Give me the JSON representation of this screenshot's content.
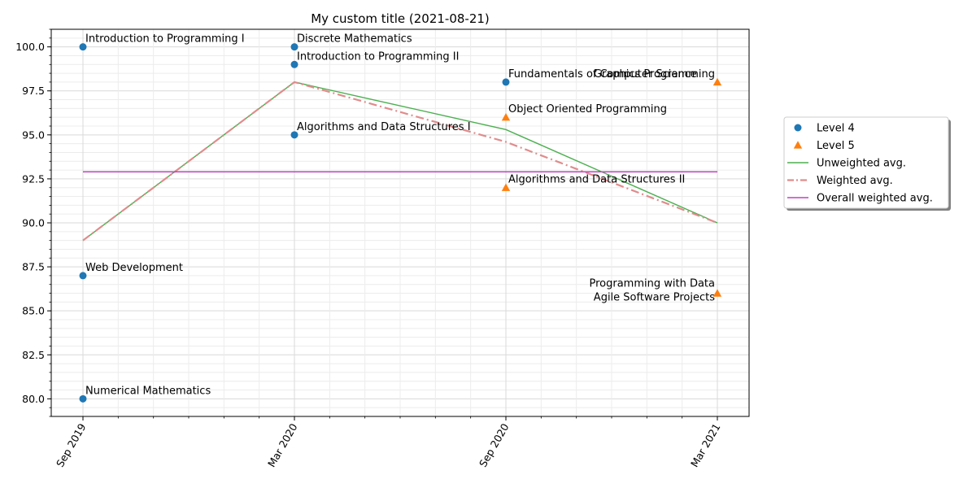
{
  "chart_data": {
    "type": "line",
    "title": "My custom title (2021-08-21)",
    "xlabel": "",
    "ylabel": "",
    "x_categories": [
      "Sep 2019",
      "Mar 2020",
      "Sep 2020",
      "Mar 2021"
    ],
    "yticks": [
      "80.0",
      "82.5",
      "85.0",
      "87.5",
      "90.0",
      "92.5",
      "95.0",
      "97.5",
      "100.0"
    ],
    "ylim": [
      79,
      101
    ],
    "grid": true,
    "legend_position": "right",
    "series": [
      {
        "name": "Level 4",
        "kind": "markers",
        "marker": "circle",
        "color": "#1f77b4",
        "points": [
          {
            "x": 0,
            "y": 100,
            "label": "Introduction to Programming I"
          },
          {
            "x": 0,
            "y": 87,
            "label": "Web Development"
          },
          {
            "x": 0,
            "y": 80,
            "label": "Numerical Mathematics"
          },
          {
            "x": 1,
            "y": 100,
            "label": "Discrete Mathematics"
          },
          {
            "x": 1,
            "y": 99,
            "label": "Introduction to Programming II"
          },
          {
            "x": 1,
            "y": 95,
            "label": "Algorithms and Data Structures I"
          },
          {
            "x": 2,
            "y": 98,
            "label": "Fundamentals of Computer Science"
          }
        ]
      },
      {
        "name": "Level 5",
        "kind": "markers",
        "marker": "triangle",
        "color": "#ff7f0e",
        "points": [
          {
            "x": 2,
            "y": 96,
            "label": "Object Oriented Programming"
          },
          {
            "x": 2,
            "y": 92,
            "label": "Algorithms and Data Structures II"
          },
          {
            "x": 3,
            "y": 98,
            "label": "Graphics Programming"
          },
          {
            "x": 3,
            "y": 86,
            "label": "Programming with Data\nAgile Software Projects"
          }
        ]
      },
      {
        "name": "Unweighted avg.",
        "kind": "line",
        "color": "#4caf50",
        "values": [
          89.0,
          98.0,
          95.3,
          90.0
        ]
      },
      {
        "name": "Weighted avg.",
        "kind": "line",
        "style": "dashdot",
        "color": "#e08c8c",
        "values": [
          89.0,
          98.0,
          94.6,
          90.0
        ]
      },
      {
        "name": "Overall weighted avg.",
        "kind": "line",
        "color": "#bf40bf",
        "values": [
          92.9,
          92.9,
          92.9,
          92.9
        ]
      }
    ]
  }
}
